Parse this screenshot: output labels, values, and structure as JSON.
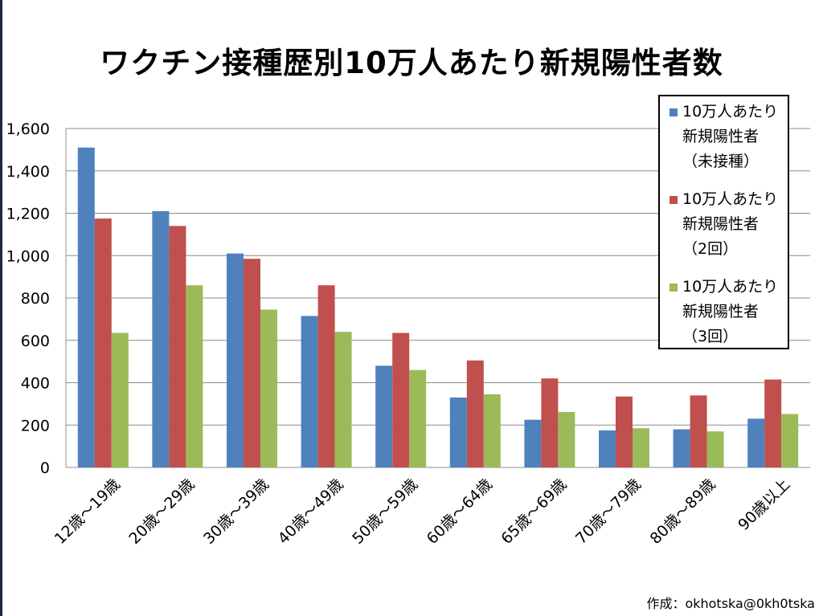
{
  "page": {
    "title": "ワクチン接種歴別10万人あたり新規陽性者数",
    "credit": "作成：okhotska@0kh0tska"
  },
  "chart_data": {
    "type": "bar",
    "title": "ワクチン接種歴別10万人あたり新規陽性者数",
    "xlabel": "",
    "ylabel": "",
    "ylim": [
      0,
      1600
    ],
    "yticks": [
      0,
      200,
      400,
      600,
      800,
      1000,
      1200,
      1400,
      1600
    ],
    "ytick_labels": [
      "0",
      "200",
      "400",
      "600",
      "800",
      "1,000",
      "1,200",
      "1,400",
      "1,600"
    ],
    "grid": true,
    "legend_position": "top-right",
    "categories": [
      "12歳～19歳",
      "20歳～29歳",
      "30歳～39歳",
      "40歳～49歳",
      "50歳～59歳",
      "60歳～64歳",
      "65歳～69歳",
      "70歳～79歳",
      "80歳～89歳",
      "90歳以上"
    ],
    "series": [
      {
        "name": "10万人あたり\n新規陽性者\n（未接種）",
        "color": "#4f81bd",
        "values": [
          1510,
          1210,
          1010,
          715,
          480,
          330,
          225,
          175,
          180,
          230
        ]
      },
      {
        "name": "10万人あたり\n新規陽性者\n（2回）",
        "color": "#c0504d",
        "values": [
          1175,
          1140,
          985,
          860,
          635,
          505,
          420,
          335,
          340,
          415
        ]
      },
      {
        "name": "10万人あたり\n新規陽性者\n（3回）",
        "color": "#9bbb59",
        "values": [
          635,
          860,
          745,
          640,
          460,
          345,
          262,
          185,
          170,
          252
        ]
      }
    ]
  }
}
